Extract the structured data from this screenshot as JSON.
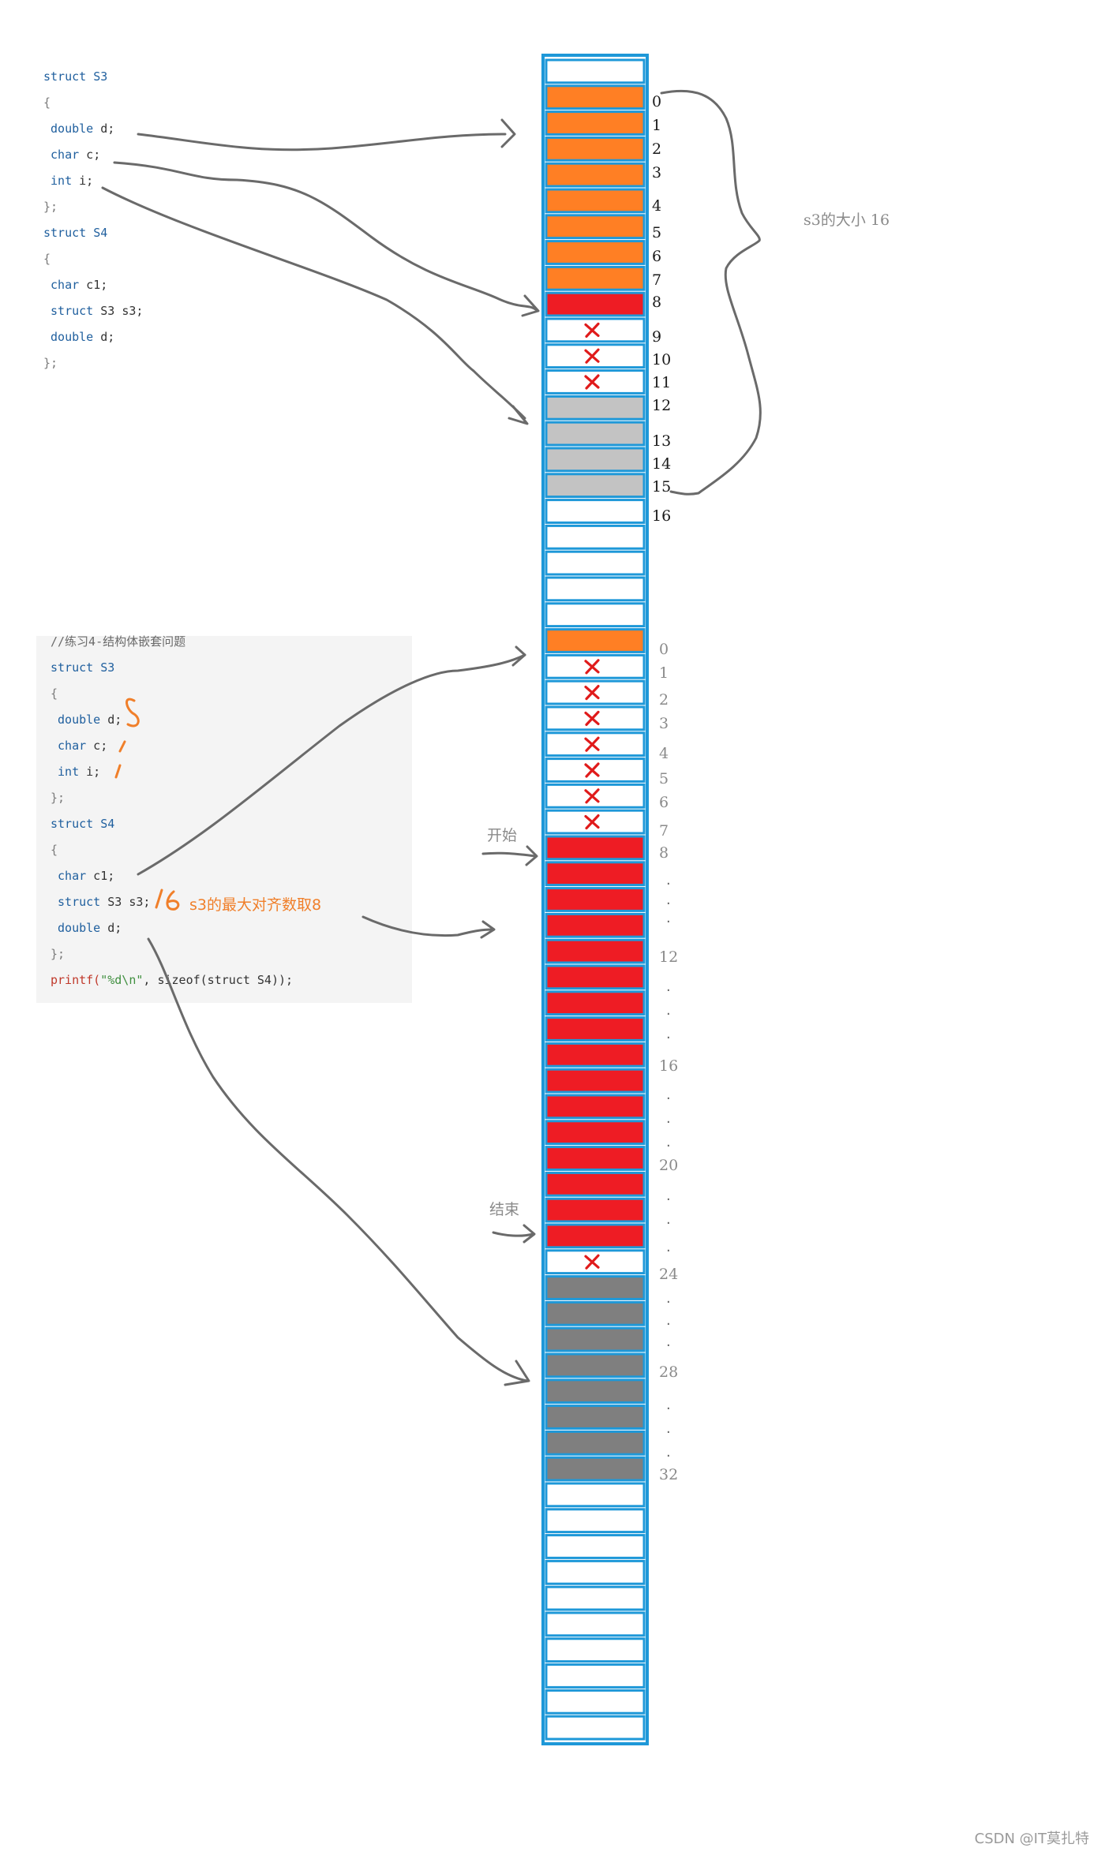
{
  "code_top": [
    [
      {
        "t": "struct S3",
        "c": "kw"
      }
    ],
    [
      {
        "t": "{",
        "c": "punc"
      }
    ],
    [
      {
        "t": " double",
        "c": "kw"
      },
      {
        "t": " d;",
        "c": "txt"
      }
    ],
    [
      {
        "t": " char",
        "c": "kw"
      },
      {
        "t": " c;",
        "c": "txt"
      }
    ],
    [
      {
        "t": " int",
        "c": "kw"
      },
      {
        "t": " i;",
        "c": "txt"
      }
    ],
    [
      {
        "t": "};",
        "c": "punc"
      }
    ],
    [
      {
        "t": "struct S4",
        "c": "kw"
      }
    ],
    [
      {
        "t": "{",
        "c": "punc"
      }
    ],
    [
      {
        "t": " char",
        "c": "kw"
      },
      {
        "t": " c1;",
        "c": "txt"
      }
    ],
    [
      {
        "t": " struct",
        "c": "kw"
      },
      {
        "t": " S3 s3;",
        "c": "txt"
      }
    ],
    [
      {
        "t": " double",
        "c": "kw"
      },
      {
        "t": " d;",
        "c": "txt"
      }
    ],
    [
      {
        "t": "};",
        "c": "punc"
      }
    ]
  ],
  "code_bottom": [
    [
      {
        "t": "//练习4-结构体嵌套问题",
        "c": "cmt"
      }
    ],
    [
      {
        "t": "struct S3",
        "c": "kw"
      }
    ],
    [
      {
        "t": "{",
        "c": "punc"
      }
    ],
    [
      {
        "t": " double",
        "c": "kw"
      },
      {
        "t": " d;",
        "c": "txt"
      }
    ],
    [
      {
        "t": " char",
        "c": "kw"
      },
      {
        "t": " c;",
        "c": "txt"
      }
    ],
    [
      {
        "t": " int",
        "c": "kw"
      },
      {
        "t": " i;",
        "c": "txt"
      }
    ],
    [
      {
        "t": "};",
        "c": "punc"
      }
    ],
    [
      {
        "t": "struct S4",
        "c": "kw"
      }
    ],
    [
      {
        "t": "{",
        "c": "punc"
      }
    ],
    [
      {
        "t": " char",
        "c": "kw"
      },
      {
        "t": " c1;",
        "c": "txt"
      }
    ],
    [
      {
        "t": " struct",
        "c": "kw"
      },
      {
        "t": " S3 s3;",
        "c": "txt"
      }
    ],
    [
      {
        "t": " double",
        "c": "kw"
      },
      {
        "t": " d;",
        "c": "txt"
      }
    ],
    [
      {
        "t": "};",
        "c": "punc"
      }
    ],
    [
      {
        "t": "printf(",
        "c": "fn"
      },
      {
        "t": "\"%d\\n\"",
        "c": "str"
      },
      {
        "t": ", sizeof(struct S4));",
        "c": "txt"
      }
    ]
  ],
  "handwritten": {
    "align_d": "8",
    "align_c": "1",
    "align_i": "1",
    "s3_size": "16",
    "s3_note": "s3的最大对齐数取8"
  },
  "brace_label": "s3的大小 16",
  "start_label": "开始",
  "end_label": "结束",
  "top_labels": [
    "0",
    "1",
    "2",
    "3",
    "4",
    "5",
    "6",
    "7",
    "8",
    "9",
    "10",
    "11",
    "12",
    "13",
    "14",
    "15",
    "16"
  ],
  "bottom_labels": [
    "0",
    "1",
    "2",
    "3",
    "4",
    "5",
    "6",
    "7",
    "8",
    "12",
    "16",
    "20",
    "24",
    "28",
    "32"
  ],
  "dot": "·",
  "colors": {
    "border": "#1e98d8",
    "orange": "#ff7f24",
    "red": "#ee1c24",
    "lightgray": "#c3c3c3",
    "darkgray": "#7f7f7f",
    "white": "#ffffff",
    "cross": "#e01b1b",
    "arrow": "#6a6a6a",
    "hand": "#f07f2a"
  },
  "cells": [
    "white",
    "orange",
    "orange",
    "orange",
    "orange",
    "orange",
    "orange",
    "orange",
    "orange",
    "red",
    "white",
    "white",
    "white",
    "lightgray",
    "lightgray",
    "lightgray",
    "lightgray",
    "white",
    "white",
    "white",
    "white",
    "white",
    "orange",
    "white",
    "white",
    "white",
    "white",
    "white",
    "white",
    "white",
    "red",
    "red",
    "red",
    "red",
    "red",
    "red",
    "red",
    "red",
    "red",
    "red",
    "red",
    "red",
    "red",
    "red",
    "red",
    "red",
    "white",
    "darkgray",
    "darkgray",
    "darkgray",
    "darkgray",
    "darkgray",
    "darkgray",
    "darkgray",
    "darkgray",
    "white",
    "white",
    "white",
    "white",
    "white",
    "white",
    "white",
    "white",
    "white",
    "white"
  ],
  "crosses": [
    10,
    11,
    12,
    23,
    24,
    25,
    26,
    27,
    28,
    29,
    46
  ],
  "watermark": "CSDN @IT莫扎特"
}
